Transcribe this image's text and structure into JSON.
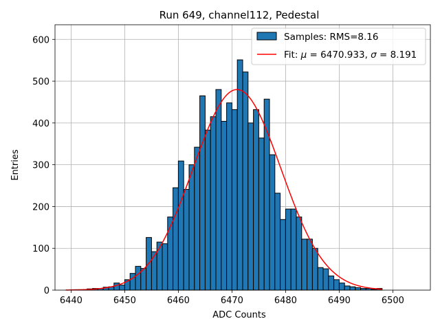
{
  "chart_data": {
    "type": "bar",
    "title": "Run 649, channel112, Pedestal",
    "xlabel": "ADC Counts",
    "ylabel": "Entries",
    "xlim": [
      6437,
      6507
    ],
    "ylim": [
      0,
      635
    ],
    "xticks": [
      6440,
      6450,
      6460,
      6470,
      6480,
      6490,
      6500
    ],
    "yticks": [
      0,
      100,
      200,
      300,
      400,
      500,
      600
    ],
    "grid": true,
    "legend_position": "top-right",
    "bar_color": "#1f77b4",
    "fit_color": "#ff0000",
    "histogram": {
      "name": "Samples: RMS=8.16",
      "bin_start": 6439,
      "bin_width": 1,
      "values": [
        0,
        1,
        1,
        1,
        3,
        4,
        4,
        7,
        8,
        17,
        12,
        25,
        40,
        57,
        52,
        126,
        92,
        115,
        111,
        175,
        245,
        309,
        241,
        300,
        342,
        465,
        383,
        415,
        480,
        404,
        448,
        432,
        551,
        522,
        400,
        432,
        364,
        457,
        324,
        232,
        169,
        194,
        194,
        175,
        122,
        122,
        100,
        54,
        51,
        34,
        25,
        17,
        10,
        8,
        6,
        4,
        4,
        2,
        4
      ]
    },
    "fit": {
      "name": "Fit: μ = 6470.933, σ = 8.191",
      "legend_math": {
        "prefix": "Fit: ",
        "mu": "μ",
        "mid": " = 6470.933, ",
        "sigma": "σ",
        "suffix": " = 8.191"
      },
      "mu": 6470.933,
      "sigma": 8.191,
      "amplitude": 480,
      "x_range": [
        6439,
        6498
      ]
    }
  }
}
